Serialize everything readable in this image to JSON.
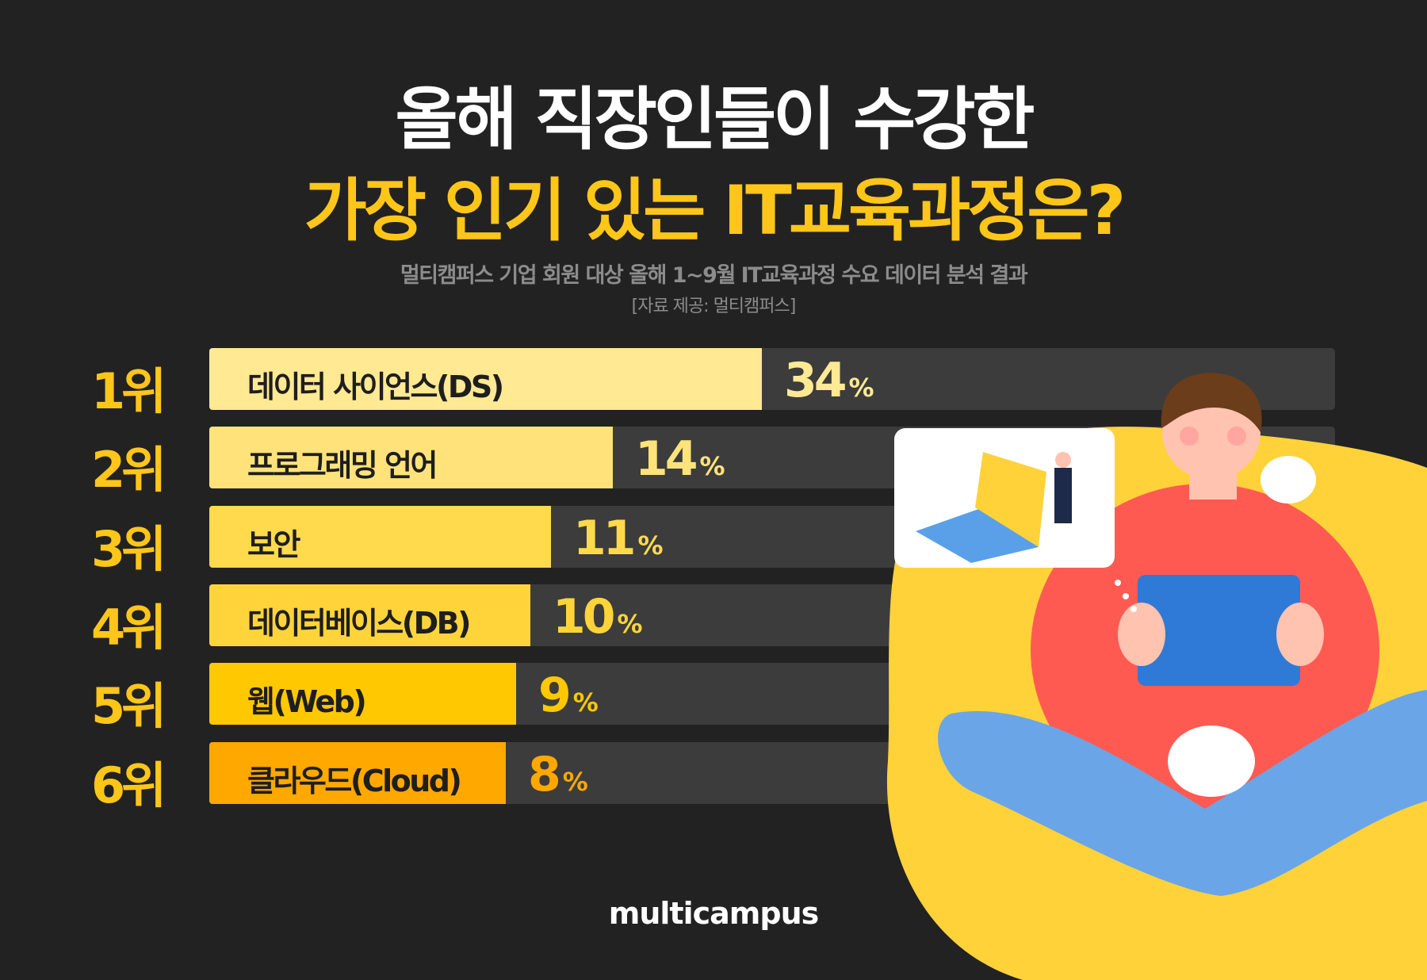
{
  "title_line1": "올해 직장인들이 수강한",
  "title_line2": "가장 인기 있는 IT교육과정은?",
  "subtitle": "멀티캠퍼스 기업 회원 대상 올해 1~9월 IT교육과정 수요 데이터 분석 결과",
  "source": "[자료 제공: 멀티캠퍼스]",
  "logo": "multicampus",
  "colors": {
    "background": "#222222",
    "accent": "#ffc61a",
    "track": "#3c3c3c"
  },
  "chart_data": {
    "type": "bar",
    "orientation": "horizontal",
    "categories": [
      "데이터 사이언스(DS)",
      "프로그래밍 언어",
      "보안",
      "데이터베이스(DB)",
      "웹(Web)",
      "클라우드(Cloud)"
    ],
    "ranks": [
      "1위",
      "2위",
      "3위",
      "4위",
      "5위",
      "6위"
    ],
    "values": [
      34,
      14,
      11,
      10,
      9,
      8
    ],
    "value_labels": [
      "34",
      "14",
      "11",
      "10",
      "9",
      "8"
    ],
    "unit": "%",
    "bar_colors": [
      "#ffe993",
      "#ffe37a",
      "#ffda4c",
      "#ffd43a",
      "#ffc800",
      "#ffa800"
    ],
    "value_colors": [
      "#ffe993",
      "#ffe37a",
      "#ffda4c",
      "#ffd43a",
      "#ffc800",
      "#ffa800"
    ]
  }
}
